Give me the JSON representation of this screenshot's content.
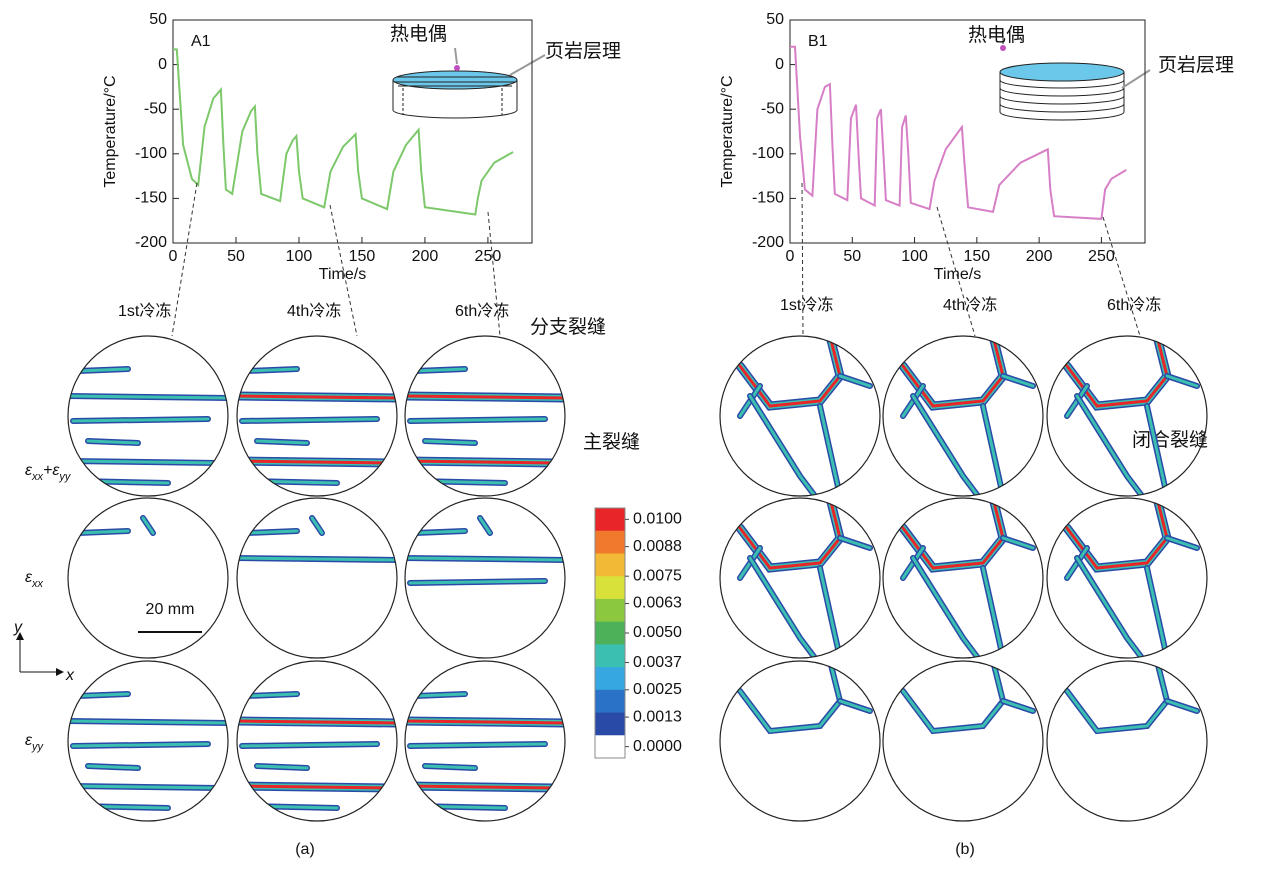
{
  "chart_data": [
    {
      "type": "line",
      "tag": "A1",
      "xlabel": "Time/s",
      "ylabel": "Temperature/°C",
      "xlim": [
        0,
        285
      ],
      "ylim": [
        -200,
        50
      ],
      "xticks": [
        0,
        50,
        100,
        150,
        200,
        250
      ],
      "yticks": [
        50,
        0,
        -50,
        -100,
        -150,
        -200
      ],
      "series": [
        {
          "color": "#7cc86a",
          "x": [
            0,
            3,
            8,
            15,
            20,
            25,
            32,
            38,
            40,
            42,
            47,
            55,
            62,
            65,
            67,
            70,
            85,
            90,
            95,
            98,
            100,
            103,
            120,
            125,
            135,
            145,
            147,
            150,
            170,
            175,
            185,
            195,
            197,
            200,
            240,
            242,
            245,
            255,
            270
          ],
          "values": [
            17,
            17,
            -90,
            -128,
            -135,
            -70,
            -38,
            -28,
            -90,
            -140,
            -145,
            -75,
            -52,
            -47,
            -100,
            -145,
            -153,
            -100,
            -85,
            -80,
            -120,
            -150,
            -160,
            -120,
            -92,
            -78,
            -120,
            -150,
            -162,
            -120,
            -90,
            -73,
            -120,
            -160,
            -168,
            -150,
            -130,
            -110,
            -98
          ]
        }
      ]
    },
    {
      "type": "line",
      "tag": "B1",
      "xlabel": "Time/s",
      "ylabel": "Temperature/°C",
      "xlim": [
        0,
        285
      ],
      "ylim": [
        -200,
        50
      ],
      "xticks": [
        0,
        50,
        100,
        150,
        200,
        250
      ],
      "yticks": [
        50,
        0,
        -50,
        -100,
        -150,
        -200
      ],
      "series": [
        {
          "color": "#d77fc6",
          "x": [
            0,
            4,
            8,
            12,
            18,
            22,
            28,
            32,
            34,
            36,
            46,
            49,
            53,
            55,
            57,
            68,
            70,
            73,
            75,
            77,
            88,
            90,
            93,
            95,
            97,
            112,
            116,
            125,
            138,
            140,
            143,
            163,
            168,
            185,
            207,
            209,
            212,
            250,
            253,
            258,
            270
          ],
          "values": [
            20,
            20,
            -80,
            -140,
            -147,
            -50,
            -25,
            -22,
            -90,
            -145,
            -152,
            -60,
            -45,
            -100,
            -150,
            -158,
            -60,
            -50,
            -100,
            -152,
            -158,
            -70,
            -57,
            -100,
            -155,
            -162,
            -130,
            -95,
            -70,
            -110,
            -160,
            -165,
            -135,
            -110,
            -95,
            -140,
            -170,
            -173,
            -140,
            -128,
            -118
          ]
        }
      ]
    }
  ],
  "annotations": {
    "thermocouple": "热电偶",
    "bedding": "页岩层理",
    "branch": "分支裂缝",
    "main": "主裂缝",
    "closed": "闭合裂缝",
    "scale": "20 mm",
    "x": "x",
    "y": "y",
    "panel_a": "(a)",
    "panel_b": "(b)"
  },
  "columns": [
    "1st冷冻",
    "4th冷冻",
    "6th冷冻"
  ],
  "row_labels": [
    [
      "ε",
      "xx",
      "+ε",
      "yy"
    ],
    [
      "ε",
      "xx"
    ],
    [
      "ε",
      "yy"
    ]
  ],
  "colorbar": {
    "colors": [
      "#e8262a",
      "#f0792c",
      "#f1b935",
      "#d8e03a",
      "#8cc83e",
      "#4db15a",
      "#3bbfb0",
      "#36a7e0",
      "#2a72c8",
      "#2a4aa8",
      "#ffffff"
    ],
    "ticks": [
      {
        "value": 0.01,
        "label": "0.0100"
      },
      {
        "value": 0.0088,
        "label": "0.0088"
      },
      {
        "value": 0.0075,
        "label": "0.0075"
      },
      {
        "value": 0.0063,
        "label": "0.0063"
      },
      {
        "value": 0.005,
        "label": "0.0050"
      },
      {
        "value": 0.0037,
        "label": "0.0037"
      },
      {
        "value": 0.0025,
        "label": "0.0025"
      },
      {
        "value": 0.0013,
        "label": "0.0013"
      },
      {
        "value": 0,
        "label": "0.0000"
      }
    ]
  }
}
